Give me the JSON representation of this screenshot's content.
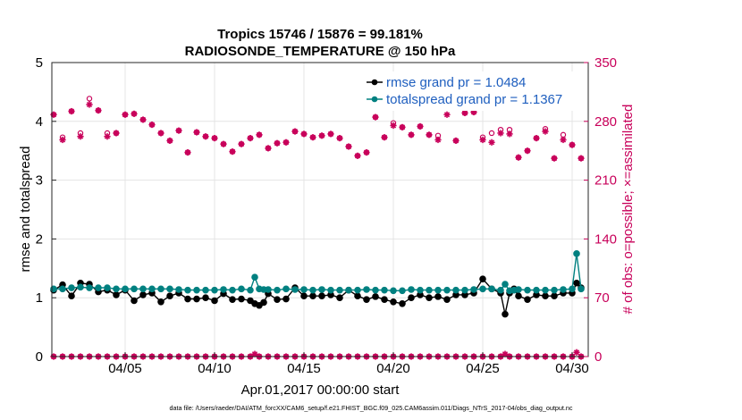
{
  "chart_data": {
    "type": "line",
    "title_line1": "Tropics 15746 / 15876 = 99.181%",
    "title_line2": "RADIOSONDE_TEMPERATURE @ 150 hPa",
    "xlabel": "Apr.01,2017 00:00:00 start",
    "ylabel_left": "rmse and totalspread",
    "ylabel_right": "# of obs: o=possible; ×=assimilated",
    "left_ylim": [
      0,
      5
    ],
    "left_yticks": [
      "0",
      "1",
      "2",
      "3",
      "4",
      "5"
    ],
    "right_ylim": [
      0,
      350
    ],
    "right_yticks": [
      "0",
      "70",
      "140",
      "210",
      "280",
      "350"
    ],
    "xlim": [
      0.9,
      30.9
    ],
    "xticks": [
      {
        "day": 5,
        "label": "04/05"
      },
      {
        "day": 10,
        "label": "04/10"
      },
      {
        "day": 15,
        "label": "04/15"
      },
      {
        "day": 20,
        "label": "04/20"
      },
      {
        "day": 25,
        "label": "04/25"
      },
      {
        "day": 30,
        "label": "04/30"
      }
    ],
    "grid": true,
    "legend_position": "top-right",
    "colors": {
      "rmse": "#000000",
      "spread": "#008080",
      "obs": "#c8005a",
      "right_axis": "#c8005a",
      "legend_text": "#1f5fbf"
    },
    "series": [
      {
        "name": "rmse grand pr = 1.0484",
        "axis": "left",
        "x": [
          1.0,
          1.5,
          2.0,
          2.5,
          3.0,
          3.5,
          4.0,
          4.5,
          5.0,
          5.5,
          6.0,
          6.5,
          7.0,
          7.5,
          8.0,
          8.5,
          9.0,
          9.5,
          10.0,
          10.5,
          11.0,
          11.5,
          12.0,
          12.25,
          12.5,
          12.75,
          13.0,
          13.5,
          14.0,
          14.5,
          15.0,
          15.5,
          16.0,
          16.5,
          17.0,
          17.5,
          18.0,
          18.5,
          19.0,
          19.5,
          20.0,
          20.5,
          21.0,
          21.5,
          22.0,
          22.5,
          23.0,
          23.5,
          24.0,
          24.5,
          25.0,
          25.5,
          26.0,
          26.25,
          26.5,
          26.75,
          27.0,
          27.5,
          28.0,
          28.5,
          29.0,
          29.5,
          30.0,
          30.25,
          30.5
        ],
        "values": [
          1.13,
          1.22,
          1.03,
          1.25,
          1.23,
          1.1,
          1.13,
          1.05,
          1.13,
          0.95,
          1.05,
          1.08,
          0.93,
          1.03,
          1.08,
          0.98,
          0.98,
          1.0,
          0.95,
          1.07,
          0.97,
          0.98,
          0.95,
          0.9,
          0.87,
          0.92,
          1.07,
          0.97,
          0.98,
          1.17,
          1.03,
          1.03,
          1.03,
          1.05,
          1.0,
          1.13,
          1.03,
          0.97,
          1.02,
          0.97,
          0.93,
          0.9,
          1.0,
          1.05,
          1.0,
          1.02,
          0.97,
          1.05,
          1.05,
          1.08,
          1.32,
          1.15,
          1.08,
          0.72,
          1.08,
          1.15,
          1.03,
          0.97,
          1.05,
          1.03,
          1.03,
          1.08,
          1.08,
          1.25,
          1.17
        ]
      },
      {
        "name": "totalspread grand pr = 1.1367",
        "axis": "left",
        "x": [
          1.0,
          1.5,
          2.0,
          2.5,
          3.0,
          3.5,
          4.0,
          4.5,
          5.0,
          5.5,
          6.0,
          6.5,
          7.0,
          7.5,
          8.0,
          8.5,
          9.0,
          9.5,
          10.0,
          10.5,
          11.0,
          11.5,
          12.0,
          12.25,
          12.5,
          12.75,
          13.0,
          13.5,
          14.0,
          14.5,
          15.0,
          15.5,
          16.0,
          16.5,
          17.0,
          17.5,
          18.0,
          18.5,
          19.0,
          19.5,
          20.0,
          20.5,
          21.0,
          21.5,
          22.0,
          22.5,
          23.0,
          23.5,
          24.0,
          24.5,
          25.0,
          25.5,
          26.0,
          26.25,
          26.5,
          26.75,
          27.0,
          27.5,
          28.0,
          28.5,
          29.0,
          29.5,
          30.0,
          30.25,
          30.5
        ],
        "values": [
          1.15,
          1.15,
          1.17,
          1.18,
          1.17,
          1.17,
          1.17,
          1.15,
          1.15,
          1.15,
          1.15,
          1.15,
          1.15,
          1.15,
          1.14,
          1.13,
          1.13,
          1.13,
          1.13,
          1.14,
          1.13,
          1.15,
          1.13,
          1.35,
          1.15,
          1.14,
          1.14,
          1.13,
          1.15,
          1.14,
          1.14,
          1.13,
          1.14,
          1.13,
          1.13,
          1.13,
          1.13,
          1.14,
          1.13,
          1.13,
          1.12,
          1.12,
          1.14,
          1.13,
          1.13,
          1.13,
          1.13,
          1.13,
          1.13,
          1.14,
          1.15,
          1.15,
          1.13,
          1.23,
          1.12,
          1.13,
          1.14,
          1.13,
          1.13,
          1.13,
          1.13,
          1.14,
          1.15,
          1.75,
          1.15
        ]
      }
    ],
    "obs_series": {
      "name": "# of obs",
      "axis": "right",
      "x": [
        1.0,
        1.5,
        2.0,
        2.5,
        3.0,
        3.5,
        4.0,
        4.5,
        5.0,
        5.5,
        6.0,
        6.5,
        7.0,
        7.5,
        8.0,
        8.5,
        9.0,
        9.5,
        10.0,
        10.5,
        11.0,
        11.5,
        12.0,
        12.5,
        13.0,
        13.5,
        14.0,
        14.5,
        15.0,
        15.5,
        16.0,
        16.5,
        17.0,
        17.5,
        18.0,
        18.5,
        19.0,
        19.5,
        20.0,
        20.5,
        21.0,
        21.5,
        22.0,
        22.5,
        23.0,
        23.5,
        24.0,
        24.5,
        25.0,
        25.5,
        26.0,
        26.5,
        27.0,
        27.5,
        28.0,
        28.5,
        29.0,
        29.5,
        30.0,
        30.5
      ],
      "possible": [
        288,
        261,
        292,
        266,
        307,
        293,
        266,
        266,
        288,
        289,
        282,
        276,
        266,
        257,
        269,
        243,
        267,
        262,
        260,
        253,
        244,
        253,
        260,
        264,
        248,
        254,
        255,
        268,
        265,
        261,
        263,
        265,
        260,
        250,
        239,
        243,
        285,
        261,
        278,
        273,
        264,
        274,
        264,
        263,
        296,
        257,
        290,
        291,
        261,
        266,
        270,
        270,
        237,
        245,
        260,
        271,
        236,
        264,
        252,
        236
      ],
      "assimilated": [
        288,
        258,
        292,
        262,
        300,
        293,
        262,
        266,
        288,
        289,
        282,
        276,
        266,
        257,
        269,
        243,
        267,
        262,
        260,
        253,
        244,
        253,
        260,
        264,
        248,
        254,
        255,
        268,
        265,
        261,
        263,
        265,
        260,
        250,
        239,
        243,
        285,
        261,
        275,
        273,
        264,
        274,
        264,
        258,
        288,
        257,
        290,
        291,
        258,
        255,
        266,
        265,
        237,
        245,
        260,
        268,
        236,
        258,
        252,
        236
      ],
      "possible_low": [
        0,
        0,
        0,
        0,
        0,
        0,
        0,
        0,
        0,
        0,
        0,
        0,
        0,
        0,
        0,
        0,
        0,
        0,
        0,
        0,
        0,
        0,
        0,
        0,
        0,
        0,
        0,
        0,
        0,
        0,
        0,
        0,
        0,
        0,
        0,
        0,
        0,
        0,
        0,
        0,
        0,
        0,
        0,
        0,
        0,
        0,
        0,
        0,
        0,
        0,
        0,
        0,
        0,
        0,
        0,
        0,
        0,
        0,
        0,
        0
      ],
      "assimilated_low_extra": [
        {
          "x": 12.25,
          "v": 3
        },
        {
          "x": 26.25,
          "v": 3
        },
        {
          "x": 30.25,
          "v": 5
        }
      ]
    }
  },
  "footer": "data file: /Users/raeder/DAI/ATM_forcXX/CAM6_setup/f.e21.FHIST_BGC.f09_025.CAM6assim.011/Diags_NTrS_2017-04/obs_diag_output.nc"
}
